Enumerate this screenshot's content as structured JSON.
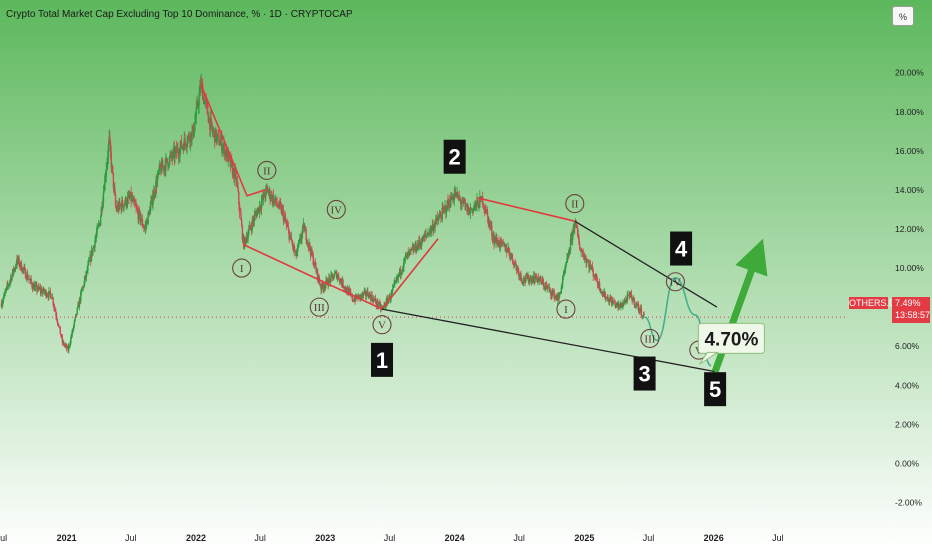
{
  "header": {
    "title": "Crypto Total Market Cap Excluding Top 10 Dominance, % · 1D · CRYPTOCAP",
    "scale_button": "%"
  },
  "price_badge": {
    "symbol": "OTHERS.D",
    "value": "7.49%",
    "countdown": "13:58:57"
  },
  "colors": {
    "background_top": "#5cb85c",
    "background_bottom": "#ffffff",
    "candle_up": "#2c9a3e",
    "candle_down": "#d04652",
    "wave_line": "#e2383f",
    "trend_line": "#222222",
    "projection_line": "#47b08a",
    "arrow": "#3eaa3a",
    "price_line": "#e23b43"
  },
  "chart_data": {
    "type": "line",
    "title": "Crypto Total Market Cap Excluding Top 10 Dominance, % · 1D · CRYPTOCAP",
    "series": [
      {
        "values": [
          [
            "2020-07-01",
            8.2
          ],
          [
            "2020-08-15",
            10.4
          ],
          [
            "2020-10-01",
            9.0
          ],
          [
            "2020-11-20",
            8.6
          ],
          [
            "2020-12-20",
            6.2
          ],
          [
            "2021-01-05",
            5.8
          ],
          [
            "2021-02-10",
            8.6
          ],
          [
            "2021-04-05",
            12.4
          ],
          [
            "2021-05-01",
            16.5
          ],
          [
            "2021-05-20",
            13.0
          ],
          [
            "2021-07-01",
            13.6
          ],
          [
            "2021-08-10",
            12.0
          ],
          [
            "2021-09-20",
            15.0
          ],
          [
            "2021-11-10",
            16.0
          ],
          [
            "2021-12-25",
            17.0
          ],
          [
            "2022-01-15",
            19.4
          ],
          [
            "2022-02-15",
            17.0
          ],
          [
            "2022-03-20",
            16.2
          ],
          [
            "2022-04-25",
            14.5
          ],
          [
            "2022-05-15",
            11.2
          ],
          [
            "2022-06-15",
            12.6
          ],
          [
            "2022-07-20",
            14.0
          ],
          [
            "2022-09-01",
            12.9
          ],
          [
            "2022-10-10",
            10.6
          ],
          [
            "2022-11-01",
            12.1
          ],
          [
            "2022-12-20",
            9.0
          ],
          [
            "2023-02-01",
            9.7
          ],
          [
            "2023-03-20",
            8.4
          ],
          [
            "2023-05-01",
            8.7
          ],
          [
            "2023-06-10",
            7.9
          ],
          [
            "2023-07-05",
            8.6
          ],
          [
            "2023-08-15",
            10.5
          ],
          [
            "2023-10-01",
            11.4
          ],
          [
            "2023-11-20",
            12.6
          ],
          [
            "2024-01-01",
            13.8
          ],
          [
            "2024-02-10",
            12.9
          ],
          [
            "2024-03-20",
            13.5
          ],
          [
            "2024-04-20",
            11.5
          ],
          [
            "2024-06-01",
            10.9
          ],
          [
            "2024-07-10",
            9.4
          ],
          [
            "2024-08-20",
            9.5
          ],
          [
            "2024-10-20",
            8.4
          ],
          [
            "2024-11-15",
            10.5
          ],
          [
            "2024-12-05",
            12.4
          ],
          [
            "2024-12-20",
            11.0
          ],
          [
            "2025-01-20",
            10.0
          ],
          [
            "2025-02-25",
            8.6
          ],
          [
            "2025-04-10",
            8.0
          ],
          [
            "2025-05-10",
            8.6
          ],
          [
            "2025-06-20",
            7.49
          ]
        ]
      }
    ],
    "projection": [
      [
        "2025-06-20",
        7.49
      ],
      [
        "2025-07-25",
        6.3
      ],
      [
        "2025-09-15",
        9.5
      ],
      [
        "2025-11-10",
        7.6
      ],
      [
        "2025-12-25",
        5.0
      ]
    ],
    "arrow": {
      "from": [
        "2026-01-05",
        4.7
      ],
      "to": [
        "2026-05-20",
        11.5
      ]
    },
    "wave_lines": [
      [
        [
          "2022-01-15",
          19.4
        ],
        [
          "2022-05-25",
          13.7
        ],
        [
          "2022-07-15",
          14.0
        ]
      ],
      [
        [
          "2022-05-15",
          11.2
        ],
        [
          "2023-06-10",
          7.9
        ],
        [
          "2023-11-15",
          11.5
        ]
      ],
      [
        [
          "2024-03-05",
          13.6
        ],
        [
          "2024-12-05",
          12.4
        ]
      ]
    ],
    "trend_lines": [
      [
        [
          "2024-12-05",
          12.4
        ],
        [
          "2026-01-10",
          8.0
        ]
      ],
      [
        [
          "2023-06-10",
          7.9
        ],
        [
          "2026-01-05",
          4.7
        ]
      ]
    ],
    "annotations": [
      {
        "text": "1",
        "style": "box",
        "x": "2023-06-10",
        "y": 5.3
      },
      {
        "text": "2",
        "style": "box",
        "x": "2024-01-01",
        "y": 15.7
      },
      {
        "text": "3",
        "style": "box",
        "x": "2025-06-20",
        "y": 4.6
      },
      {
        "text": "4",
        "style": "box",
        "x": "2025-10-01",
        "y": 11.0
      },
      {
        "text": "5",
        "style": "box",
        "x": "2026-01-05",
        "y": 3.8
      },
      {
        "text": "I",
        "style": "circle",
        "x": "2022-05-10",
        "y": 10.0
      },
      {
        "text": "II",
        "style": "circle",
        "x": "2022-07-20",
        "y": 15.0
      },
      {
        "text": "III",
        "style": "circle",
        "x": "2022-12-15",
        "y": 8.0
      },
      {
        "text": "IV",
        "style": "circle",
        "x": "2023-02-01",
        "y": 13.0
      },
      {
        "text": "V",
        "style": "circle",
        "x": "2023-06-10",
        "y": 7.1
      },
      {
        "text": "I",
        "style": "circle",
        "x": "2024-11-10",
        "y": 7.9
      },
      {
        "text": "II",
        "style": "circle",
        "x": "2024-12-05",
        "y": 13.3
      },
      {
        "text": "III",
        "style": "circle",
        "x": "2025-07-05",
        "y": 6.4
      },
      {
        "text": "IV",
        "style": "circle",
        "x": "2025-09-15",
        "y": 9.3
      },
      {
        "text": "V",
        "style": "circle",
        "x": "2025-11-20",
        "y": 5.8
      },
      {
        "text": "4.70%",
        "style": "callout",
        "x": "2026-02-20",
        "y": 6.4
      }
    ],
    "x_ticks": [
      [
        "2020-07-01",
        "Jul"
      ],
      [
        "2021-01-01",
        "2021"
      ],
      [
        "2021-07-01",
        "Jul"
      ],
      [
        "2022-01-01",
        "2022"
      ],
      [
        "2022-07-01",
        "Jul"
      ],
      [
        "2023-01-01",
        "2023"
      ],
      [
        "2023-07-01",
        "Jul"
      ],
      [
        "2024-01-01",
        "2024"
      ],
      [
        "2024-07-01",
        "Jul"
      ],
      [
        "2025-01-01",
        "2025"
      ],
      [
        "2025-07-01",
        "Jul"
      ],
      [
        "2026-01-01",
        "2026"
      ],
      [
        "2026-07-01",
        "Jul"
      ]
    ],
    "x_bold": [
      "2021",
      "2022",
      "2023",
      "2024",
      "2025",
      "2026"
    ],
    "xlim": [
      "2020-06-27",
      "2027-01-15"
    ],
    "y_ticks": [
      [
        20,
        "20.00%"
      ],
      [
        18,
        "18.00%"
      ],
      [
        16,
        "16.00%"
      ],
      [
        14,
        "14.00%"
      ],
      [
        12,
        "12.00%"
      ],
      [
        10,
        "10.00%"
      ],
      [
        8,
        "8.00%"
      ],
      [
        6,
        "6.00%"
      ],
      [
        4,
        "4.00%"
      ],
      [
        2,
        "2.00%"
      ],
      [
        0,
        "0.00%"
      ],
      [
        -2,
        "-2.00%"
      ]
    ],
    "ylim": [
      -3.0,
      22.7
    ],
    "current_price": 7.49,
    "grid": false
  }
}
